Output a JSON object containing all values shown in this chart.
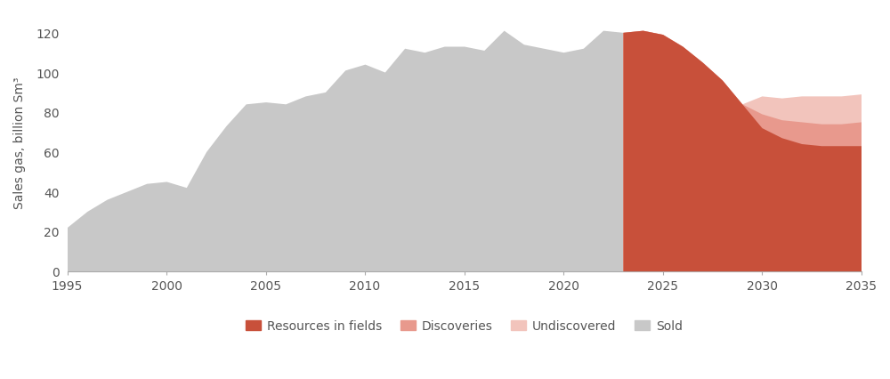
{
  "ylabel": "Sales gas, billion Sm³",
  "background_color": "#ffffff",
  "legend_labels": [
    "Resources in fields",
    "Discoveries",
    "Undiscovered",
    "Sold"
  ],
  "legend_colors": [
    "#c8503a",
    "#e8998d",
    "#f2c4bc",
    "#c8c8c8"
  ],
  "years_sold": [
    1995,
    1996,
    1997,
    1998,
    1999,
    2000,
    2001,
    2002,
    2003,
    2004,
    2005,
    2006,
    2007,
    2008,
    2009,
    2010,
    2011,
    2012,
    2013,
    2014,
    2015,
    2016,
    2017,
    2018,
    2019,
    2020,
    2021,
    2022,
    2023
  ],
  "values_sold": [
    22,
    30,
    36,
    40,
    44,
    45,
    42,
    60,
    73,
    84,
    85,
    84,
    88,
    90,
    101,
    104,
    100,
    112,
    110,
    113,
    113,
    111,
    121,
    114,
    112,
    110,
    112,
    121,
    120
  ],
  "years_resources": [
    2023,
    2024,
    2025,
    2026,
    2027,
    2028,
    2029,
    2030,
    2031,
    2032,
    2033,
    2034,
    2035
  ],
  "values_resources": [
    120,
    121,
    119,
    113,
    105,
    96,
    84,
    72,
    67,
    64,
    63,
    63,
    63
  ],
  "values_discoveries": [
    120,
    121,
    119,
    113,
    105,
    96,
    84,
    79,
    76,
    75,
    74,
    74,
    75
  ],
  "values_undiscovered": [
    120,
    121,
    119,
    113,
    105,
    96,
    84,
    88,
    87,
    88,
    88,
    88,
    89
  ],
  "xlim": [
    1995,
    2035
  ],
  "ylim": [
    0,
    130
  ],
  "yticks": [
    0,
    20,
    40,
    60,
    80,
    100,
    120
  ],
  "xticks": [
    1995,
    2000,
    2005,
    2010,
    2015,
    2020,
    2025,
    2030,
    2035
  ]
}
